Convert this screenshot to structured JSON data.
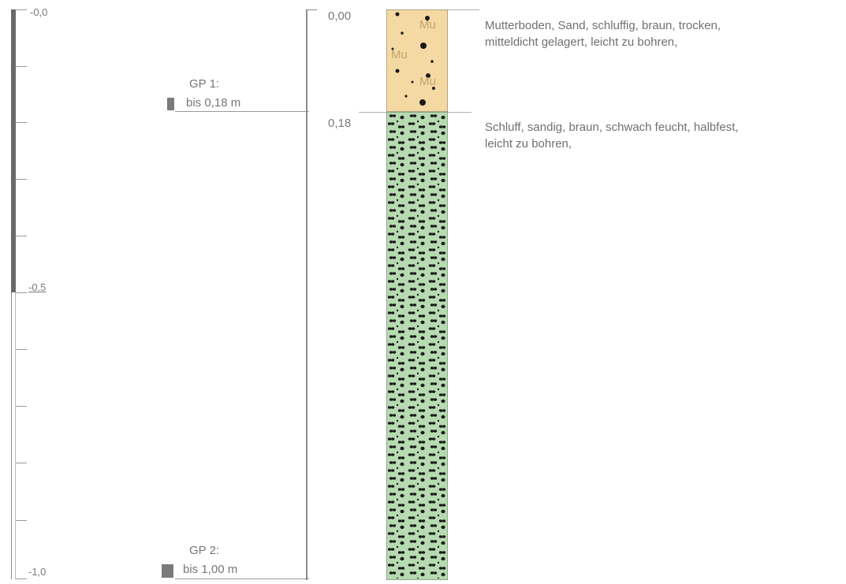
{
  "scale": {
    "ticks": [
      {
        "label": "-0,0"
      },
      {
        "label": "-0.5"
      },
      {
        "label": "-1,0"
      }
    ]
  },
  "samples": [
    {
      "title": "GP 1:",
      "depth": "bis 0,18 m"
    },
    {
      "title": "GP 2:",
      "depth": "bis 1,00 m"
    }
  ],
  "layers": [
    {
      "top_depth": "0,00",
      "symbol": "Mu",
      "color": "#f5d9a3",
      "description_line1": "Mutterboden, Sand, schluffig, braun, trocken,",
      "description_line2": "mitteldicht gelagert, leicht zu bohren,"
    },
    {
      "top_depth": "0,18",
      "color": "#b6dbb0",
      "description_line1": "Schluff, sandig, braun, schwach feucht, halbfest,",
      "description_line2": "leicht zu bohren,"
    }
  ],
  "colors": {
    "sample_marker": "#7a7a7a",
    "column_outline": "#555555"
  }
}
